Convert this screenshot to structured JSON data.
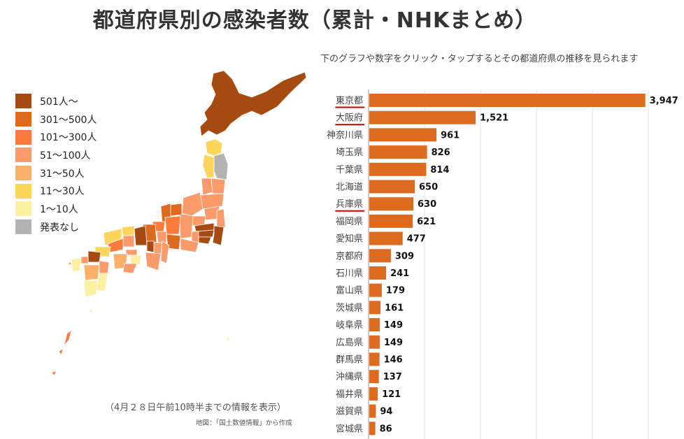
{
  "title": "都道府県別の感染者数（累計・NHKまとめ）",
  "instructions": "下のグラフや数字をクリック・タップするとその都道府県の推移を見られます",
  "legend": [
    {
      "label": "501人～",
      "color": "#a64a12"
    },
    {
      "label": "301～500人",
      "color": "#dc6a1f"
    },
    {
      "label": "101～300人",
      "color": "#ff7b3d"
    },
    {
      "label": "51～100人",
      "color": "#fb9a6b"
    },
    {
      "label": "31～50人",
      "color": "#fdaf6c"
    },
    {
      "label": "11～30人",
      "color": "#fcd55a"
    },
    {
      "label": "1～10人",
      "color": "#fdf0a3"
    },
    {
      "label": "発表なし",
      "color": "#b3b3b3"
    }
  ],
  "footnote": "（4月２８日午前10時半までの情報を表示）",
  "credit": "地図：「国土数値情報」から作成",
  "colors": {
    "bar": "#dc6a1f",
    "underline": "#cc0000",
    "grid": "#e3e3e3"
  },
  "chart_data": {
    "type": "bar",
    "orientation": "horizontal",
    "categories": [
      "東京都",
      "大阪府",
      "神奈川県",
      "埼玉県",
      "千葉県",
      "北海道",
      "兵庫県",
      "福岡県",
      "愛知県",
      "京都府",
      "石川県",
      "富山県",
      "茨城県",
      "岐阜県",
      "広島県",
      "群馬県",
      "沖縄県",
      "福井県",
      "滋賀県",
      "宮城県"
    ],
    "values": [
      3947,
      1521,
      961,
      826,
      814,
      650,
      630,
      621,
      477,
      309,
      241,
      179,
      161,
      149,
      149,
      146,
      137,
      121,
      94,
      86
    ],
    "value_labels": [
      "3,947",
      "1,521",
      "961",
      "826",
      "814",
      "650",
      "630",
      "621",
      "477",
      "309",
      "241",
      "179",
      "161",
      "149",
      "149",
      "146",
      "137",
      "121",
      "94",
      "86"
    ],
    "underlined": [
      "東京都",
      "大阪府",
      "兵庫県"
    ],
    "xlim": [
      0,
      4000
    ],
    "grid": true
  }
}
